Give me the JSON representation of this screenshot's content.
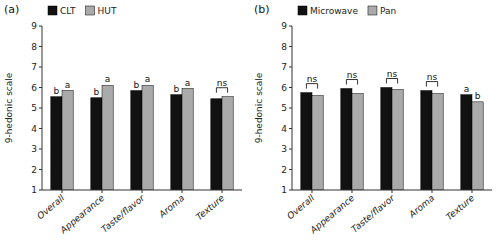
{
  "chart_data": [
    {
      "type": "bar",
      "title": "(a)",
      "categories": [
        "Overall",
        "Appearance",
        "Taste/flavor",
        "Aroma",
        "Texture"
      ],
      "series": [
        {
          "name": "CLT",
          "color": "#111111",
          "values": [
            5.55,
            5.5,
            5.85,
            5.65,
            5.45
          ]
        },
        {
          "name": "HUT",
          "color": "#aaaaaa",
          "values": [
            5.85,
            6.1,
            6.1,
            5.95,
            5.55
          ]
        }
      ],
      "ylabel": "9-hedonic scale",
      "ylim": [
        1,
        9
      ],
      "yticks": [
        1,
        2,
        3,
        4,
        5,
        6,
        7,
        8,
        9
      ],
      "grid": false,
      "legend": "upper left",
      "annotations": [
        {
          "text": "b",
          "category": "Overall",
          "series": "CLT"
        },
        {
          "text": "a",
          "category": "Overall",
          "series": "HUT"
        },
        {
          "text": "b",
          "category": "Appearance",
          "series": "CLT"
        },
        {
          "text": "a",
          "category": "Appearance",
          "series": "HUT"
        },
        {
          "text": "b",
          "category": "Taste/flavor",
          "series": "CLT"
        },
        {
          "text": "a",
          "category": "Taste/flavor",
          "series": "HUT"
        },
        {
          "text": "b",
          "category": "Aroma",
          "series": "CLT"
        },
        {
          "text": "a",
          "category": "Aroma",
          "series": "HUT"
        },
        {
          "text": "ns",
          "category": "Texture"
        }
      ]
    },
    {
      "type": "bar",
      "title": "(b)",
      "categories": [
        "Overall",
        "Appearance",
        "Taste/flavor",
        "Aroma",
        "Texture"
      ],
      "series": [
        {
          "name": "Microwave",
          "color": "#111111",
          "values": [
            5.75,
            5.95,
            6.0,
            5.85,
            5.65
          ]
        },
        {
          "name": "Pan",
          "color": "#aaaaaa",
          "values": [
            5.6,
            5.7,
            5.9,
            5.7,
            5.3
          ]
        }
      ],
      "ylabel": "9-hedonic scale",
      "ylim": [
        1,
        9
      ],
      "yticks": [
        1,
        2,
        3,
        4,
        5,
        6,
        7,
        8,
        9
      ],
      "grid": false,
      "legend": "upper left",
      "annotations": [
        {
          "text": "ns",
          "category": "Overall"
        },
        {
          "text": "ns",
          "category": "Appearance"
        },
        {
          "text": "ns",
          "category": "Taste/flavor"
        },
        {
          "text": "ns",
          "category": "Aroma"
        },
        {
          "text": "a",
          "category": "Texture",
          "series": "Microwave"
        },
        {
          "text": "b",
          "category": "Texture",
          "series": "Pan"
        }
      ]
    }
  ]
}
